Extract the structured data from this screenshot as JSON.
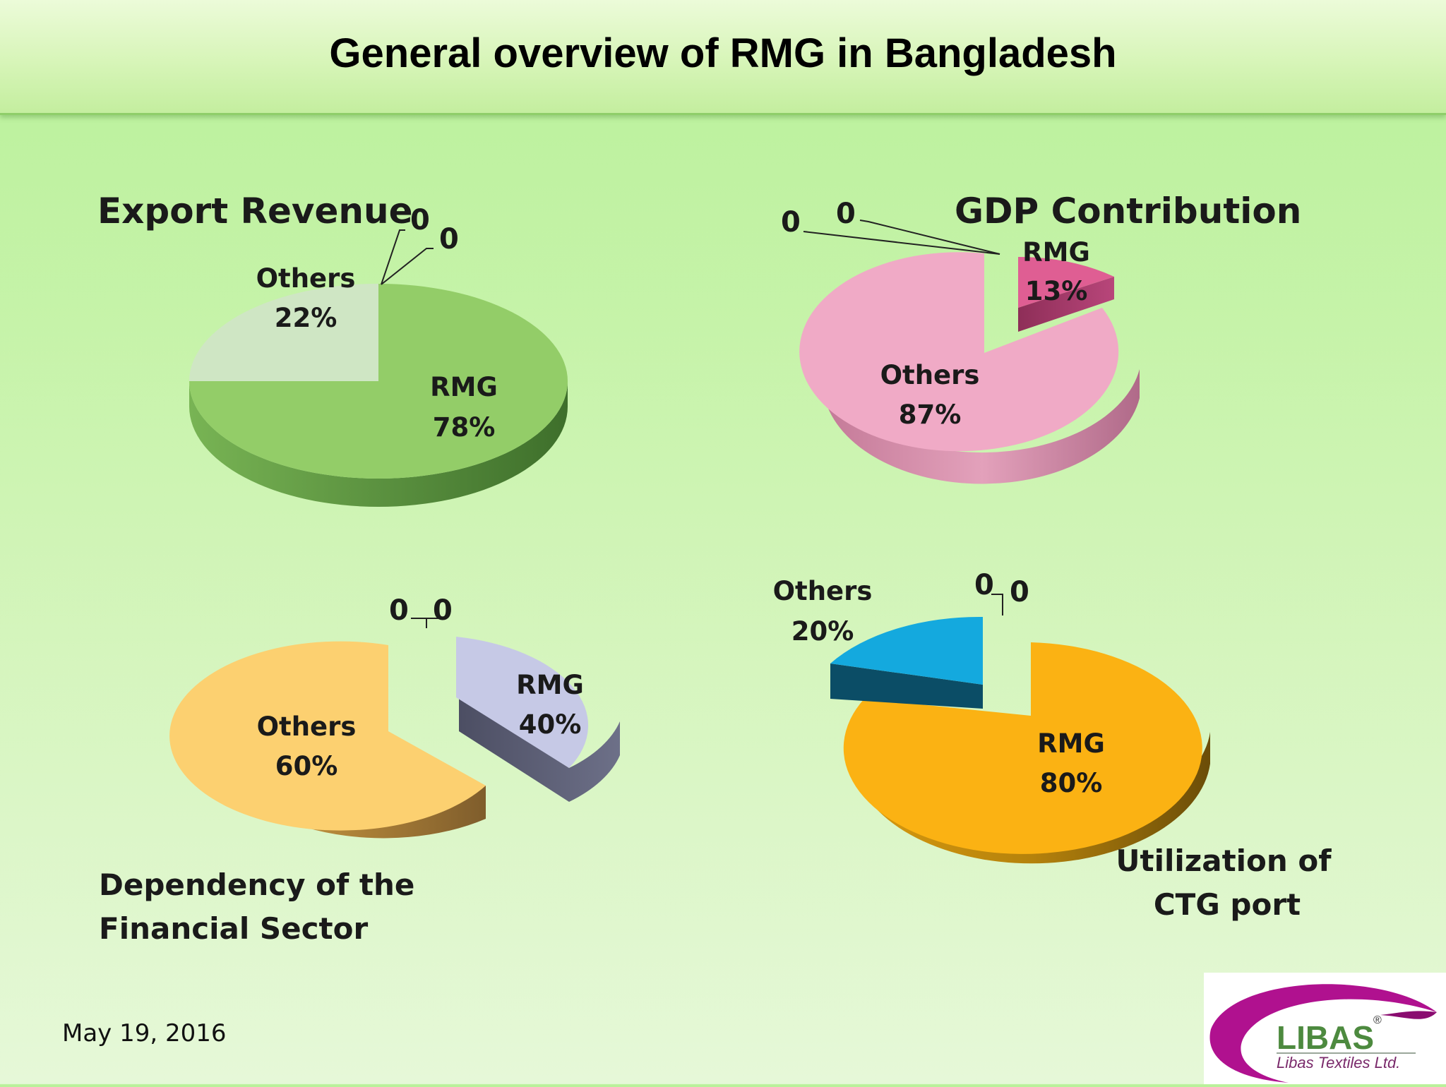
{
  "slide": {
    "title": "General overview of RMG in Bangladesh",
    "date": "May 19, 2016"
  },
  "logo": {
    "text": "LIBAS",
    "subtext": "Libas Textiles Ltd.",
    "mark": "®",
    "colors": {
      "ring": "#b0118f",
      "text": "#4d8a3f",
      "sub": "#7a2a6b"
    }
  },
  "chart_data": [
    {
      "type": "pie",
      "title": "Export Revenue",
      "categories": [
        "Others",
        "RMG"
      ],
      "values": [
        22,
        78
      ],
      "value_labels": [
        "22%",
        "78%"
      ],
      "zero_labels": [
        "0",
        "0"
      ],
      "colors": [
        "#cde5c2",
        "#8fcb64"
      ]
    },
    {
      "type": "pie",
      "title": "GDP Contribution",
      "categories": [
        "RMG",
        "Others"
      ],
      "values": [
        13,
        87
      ],
      "value_labels": [
        "13%",
        "87%"
      ],
      "zero_labels": [
        "0",
        "0"
      ],
      "colors": [
        "#dc5a8c",
        "#eeaac4"
      ]
    },
    {
      "type": "pie",
      "title": "Dependency of the Financial Sector",
      "title_lines": [
        "Dependency of the",
        "Financial Sector"
      ],
      "categories": [
        "Others",
        "RMG"
      ],
      "values": [
        60,
        40
      ],
      "value_labels": [
        "60%",
        "40%"
      ],
      "zero_labels": [
        "0",
        "0"
      ],
      "colors": [
        "#fcd06e",
        "#c4c8e4"
      ]
    },
    {
      "type": "pie",
      "title": "Utilization of CTG port",
      "title_lines": [
        "Utilization of",
        "CTG port"
      ],
      "categories": [
        "Others",
        "RMG"
      ],
      "values": [
        20,
        80
      ],
      "value_labels": [
        "20%",
        "80%"
      ],
      "zero_labels": [
        "0",
        "0"
      ],
      "colors": [
        "#14a6d8",
        "#fbb10f"
      ]
    }
  ]
}
